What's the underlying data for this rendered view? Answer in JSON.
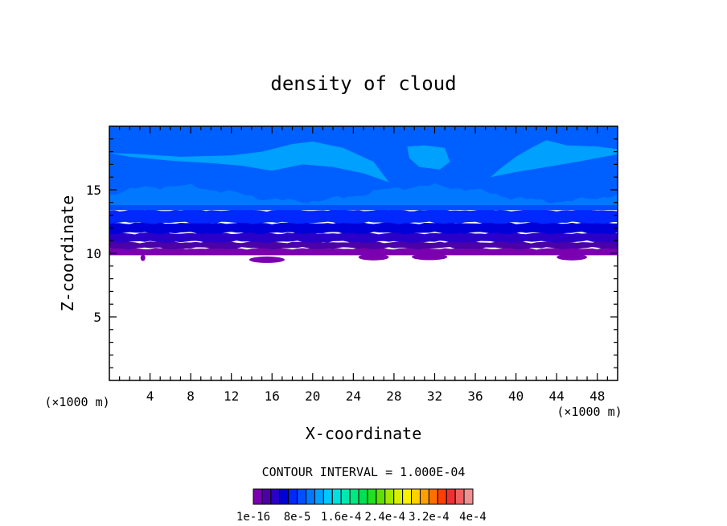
{
  "chart_data": {
    "type": "heatmap",
    "title": "density of cloud",
    "xlabel": "X-coordinate",
    "ylabel": "Z-coordinate",
    "x_unit": "(×1000 m)",
    "x_unit_right": "(×1000 m)",
    "xlim": [
      0,
      50
    ],
    "ylim": [
      0,
      20
    ],
    "x_ticks": [
      4,
      8,
      12,
      16,
      20,
      24,
      28,
      32,
      36,
      40,
      44,
      48
    ],
    "y_ticks": [
      5,
      10,
      15
    ],
    "contour_interval_text": "CONTOUR INTERVAL = 1.000E-04",
    "colorbar": {
      "colors": [
        "#7a00b0",
        "#4b00a8",
        "#2a00c8",
        "#0000d8",
        "#0028ff",
        "#0050ff",
        "#0078ff",
        "#00a0ff",
        "#00c8ff",
        "#00e0e0",
        "#00e8b0",
        "#00e880",
        "#00e050",
        "#20e020",
        "#60e000",
        "#a0e800",
        "#d8f000",
        "#f8f000",
        "#ffd000",
        "#ffa000",
        "#ff7000",
        "#ff4000",
        "#f03030",
        "#f06060",
        "#f09090"
      ],
      "tick_labels": [
        "1e-16",
        "8e-5",
        "1.6e-4",
        "2.4e-4",
        "3.2e-4",
        "4e-4"
      ]
    },
    "bands": [
      {
        "level": "1e-16",
        "color": "#7a00b0",
        "z_bottom": 9.7,
        "z_top": 10.4
      },
      {
        "level": "2e-5",
        "color": "#4b00a8",
        "z_bottom": 10.4,
        "z_top": 10.9
      },
      {
        "level": "4e-5",
        "color": "#2a00c8",
        "z_bottom": 10.9,
        "z_top": 11.6
      },
      {
        "level": "6e-5",
        "color": "#0000d8",
        "z_bottom": 11.6,
        "z_top": 12.4
      },
      {
        "level": "8e-5",
        "color": "#0028ff",
        "z_bottom": 12.4,
        "z_top": 13.4
      },
      {
        "level": "1e-4",
        "color": "#0050ff",
        "z_bottom": 13.4,
        "z_top": 20.0
      },
      {
        "level": "1.2e-4",
        "color": "#0078ff",
        "z_bottom": 13.8,
        "z_top": 20.0
      },
      {
        "level": "1.4e-4",
        "color": "#00a0ff",
        "z_bottom": 16.5,
        "z_top": 18.8
      }
    ]
  }
}
